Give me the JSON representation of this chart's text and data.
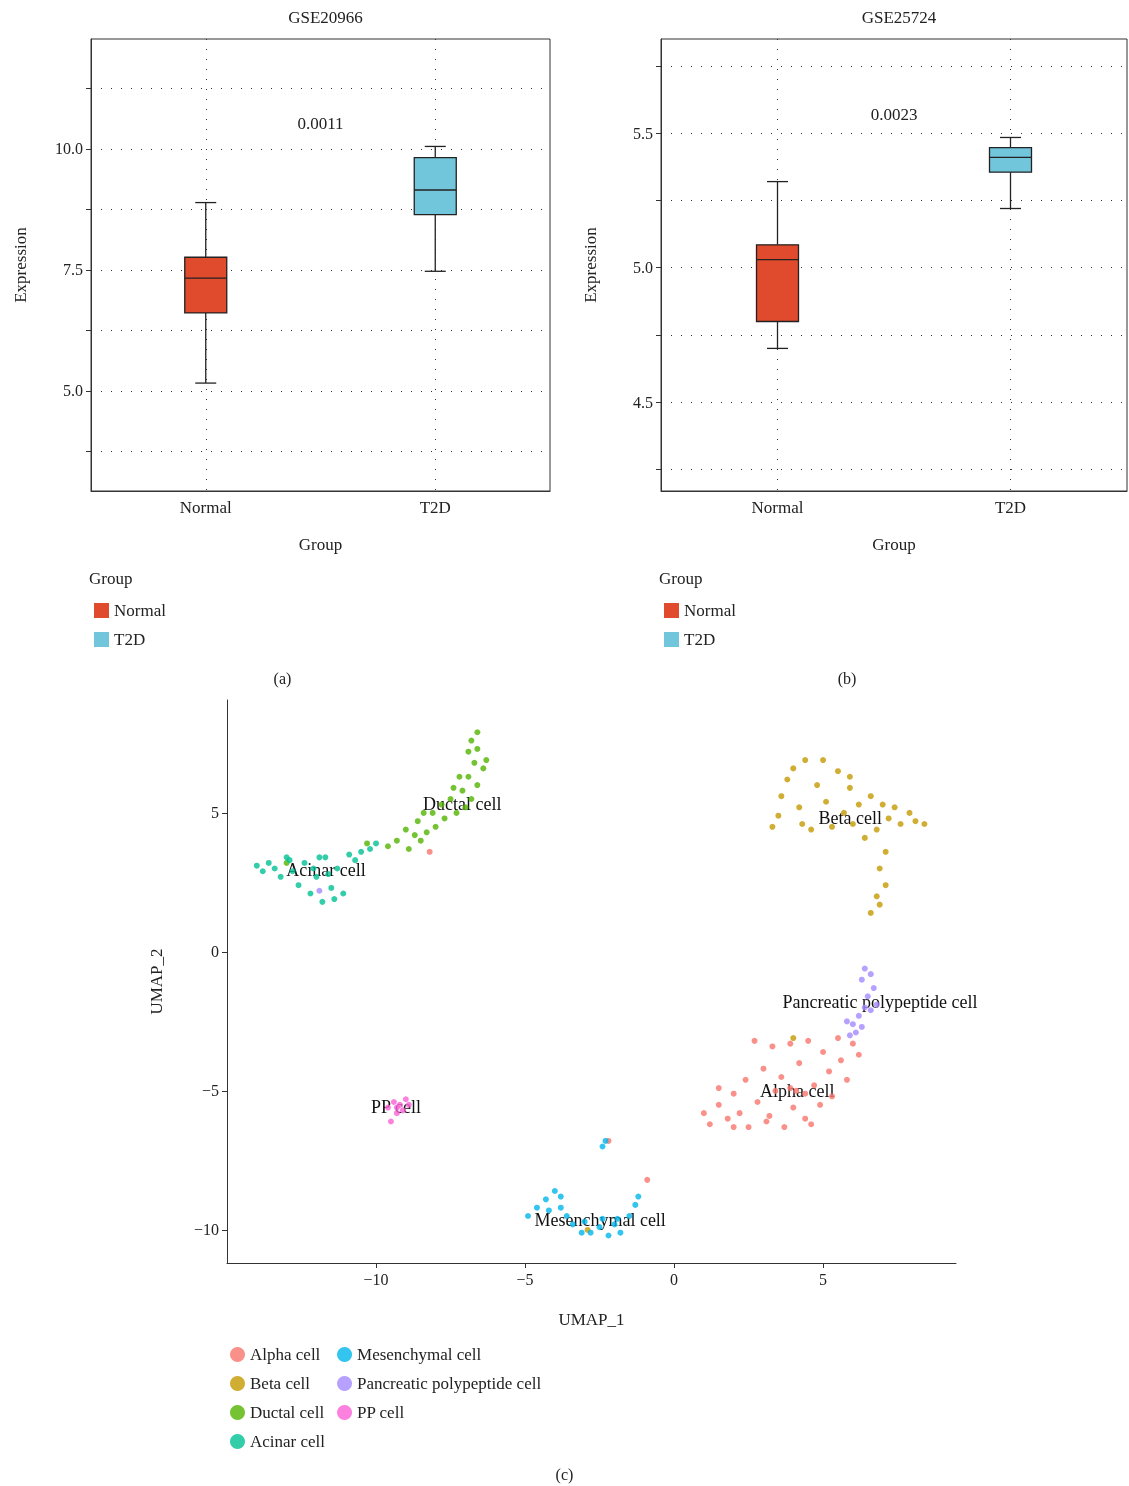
{
  "chart_data": [
    {
      "type": "box",
      "title": "GSE20966",
      "xlabel": "Group",
      "ylabel": "Expression",
      "legend_title": "Group",
      "legend": "bottom",
      "grid": true,
      "categories": [
        "Normal",
        "T2D"
      ],
      "series": [
        {
          "name": "Normal",
          "color": "#e04a2d",
          "boxes": [
            {
              "low": 5.16,
              "q1": 6.61,
              "median": 7.33,
              "q3": 7.76,
              "high": 8.89
            },
            null
          ]
        },
        {
          "name": "T2D",
          "color": "#72c6dc",
          "boxes": [
            null,
            {
              "low": 7.47,
              "q1": 8.64,
              "median": 9.15,
              "q3": 9.82,
              "high": 10.05
            }
          ]
        }
      ],
      "ylim": [
        2.93,
        12.27
      ],
      "yticks": [
        {
          "value": 3.75,
          "label": null
        },
        {
          "value": 5,
          "label": "5.0"
        },
        {
          "value": 6.25,
          "label": null
        },
        {
          "value": 7.5,
          "label": "7.5"
        },
        {
          "value": 8.75,
          "label": null
        },
        {
          "value": 10,
          "label": "10.0"
        },
        {
          "value": 11.25,
          "label": null
        }
      ],
      "annotations": [
        "0.0011",
        "(a)"
      ]
    },
    {
      "type": "box",
      "title": "GSE25724",
      "xlabel": "Group",
      "ylabel": "Expression",
      "legend_title": "Group",
      "legend": "bottom",
      "grid": true,
      "categories": [
        "Normal",
        "T2D"
      ],
      "series": [
        {
          "name": "Normal",
          "color": "#e04a2d",
          "boxes": [
            {
              "low": 4.7,
              "q1": 4.8,
              "median": 5.03,
              "q3": 5.085,
              "high": 5.32
            },
            null
          ]
        },
        {
          "name": "T2D",
          "color": "#72c6dc",
          "boxes": [
            null,
            {
              "low": 5.22,
              "q1": 5.355,
              "median": 5.41,
              "q3": 5.446,
              "high": 5.484
            }
          ]
        }
      ],
      "ylim": [
        4.17,
        5.85
      ],
      "yticks": [
        {
          "value": 4.25,
          "label": null
        },
        {
          "value": 4.5,
          "label": "4.5"
        },
        {
          "value": 4.75,
          "label": null
        },
        {
          "value": 5,
          "label": "5.0"
        },
        {
          "value": 5.25,
          "label": null
        },
        {
          "value": 5.5,
          "label": "5.5"
        },
        {
          "value": 5.75,
          "label": null
        }
      ],
      "annotations": [
        "0.0023",
        "(b)"
      ]
    },
    {
      "type": "scatter",
      "xlabel": "UMAP_1",
      "ylabel": "UMAP_2",
      "legend": "bottom",
      "grid": false,
      "marker": "circle",
      "xlim": [
        -15,
        9.46
      ],
      "xticks": [
        {
          "value": -10,
          "label": "−10"
        },
        {
          "value": -5,
          "label": "−5"
        },
        0,
        5
      ],
      "ylim": [
        -11.19,
        9.06
      ],
      "yticks": [
        {
          "value": -10,
          "label": "−10"
        },
        {
          "value": -5,
          "label": "−5"
        },
        0,
        5
      ],
      "series": [
        {
          "name": "Alpha cell",
          "color": "#f8766d",
          "x": [
            4.1,
            3.9,
            4.4,
            1.0,
            1.2,
            1.5,
            1.8,
            2.0,
            2.2,
            2.4,
            2.5,
            2.7,
            2.8,
            3.0,
            3.1,
            3.3,
            3.4,
            3.6,
            3.7,
            3.9,
            4.0,
            4.2,
            4.4,
            4.5,
            4.7,
            4.9,
            5.0,
            5.2,
            5.3,
            5.5,
            5.6,
            5.8,
            6.0,
            6.2,
            3.2,
            2.0,
            4.6,
            1.5,
            -2.2,
            -0.9,
            -8.2
          ],
          "values": [
            -5.0,
            -4.9,
            -5.1,
            -5.8,
            -6.2,
            -5.5,
            -6.0,
            -5.1,
            -5.8,
            -4.6,
            -6.3,
            -3.2,
            -5.4,
            -4.2,
            -6.1,
            -3.4,
            -5.0,
            -4.5,
            -6.3,
            -3.3,
            -5.6,
            -4.0,
            -6.0,
            -3.2,
            -4.8,
            -5.5,
            -3.6,
            -4.3,
            -5.2,
            -3.1,
            -3.9,
            -4.6,
            -3.3,
            -3.7,
            -5.9,
            -6.3,
            -6.2,
            -4.9,
            -6.8,
            -8.2,
            3.6
          ]
        },
        {
          "name": "Beta cell",
          "color": "#c49a00",
          "x": [
            3.3,
            3.5,
            3.6,
            3.8,
            4.0,
            4.2,
            4.4,
            4.6,
            4.8,
            5.0,
            5.1,
            5.3,
            5.5,
            5.7,
            5.9,
            6.0,
            6.2,
            6.4,
            6.6,
            6.8,
            7.0,
            7.2,
            7.4,
            7.6,
            7.9,
            8.1,
            8.4,
            7.1,
            6.9,
            7.1,
            6.8,
            6.9,
            6.6,
            4.3,
            5.9,
            -2.9,
            4.0
          ],
          "values": [
            4.5,
            4.9,
            5.6,
            6.2,
            6.6,
            5.2,
            6.9,
            4.4,
            6.0,
            6.9,
            5.4,
            4.5,
            6.5,
            5.0,
            5.9,
            4.6,
            5.3,
            4.1,
            5.6,
            4.4,
            5.3,
            4.8,
            5.2,
            4.6,
            5.0,
            4.7,
            4.6,
            3.6,
            3.0,
            2.4,
            2.0,
            1.7,
            1.4,
            4.6,
            6.3,
            -10.0,
            -3.1
          ]
        },
        {
          "name": "Ductal cell",
          "color": "#53b400",
          "x": [
            -9.6,
            -9.3,
            -9.0,
            -8.9,
            -8.6,
            -8.5,
            -8.3,
            -8.1,
            -8.0,
            -7.8,
            -7.7,
            -7.5,
            -7.3,
            -7.1,
            -7.0,
            -6.9,
            -6.8,
            -6.7,
            -6.6,
            -6.4,
            -6.3,
            -6.6,
            -6.8,
            -6.6,
            -6.9,
            -7.2,
            -7.4,
            -8.4,
            -8.7,
            -10.3,
            -13.0
          ],
          "values": [
            3.8,
            4.0,
            4.4,
            3.7,
            4.7,
            4.0,
            4.3,
            5.0,
            4.5,
            5.3,
            4.8,
            5.5,
            5.0,
            5.8,
            5.2,
            6.3,
            5.5,
            6.8,
            6.0,
            6.6,
            6.9,
            7.3,
            7.6,
            7.9,
            7.2,
            6.3,
            5.9,
            5.0,
            4.2,
            3.9,
            3.2
          ]
        },
        {
          "name": "Acinar cell",
          "color": "#00c094",
          "x": [
            -11.6,
            -12.1,
            -14.0,
            -13.8,
            -13.6,
            -13.4,
            -13.2,
            -13.0,
            -12.8,
            -12.6,
            -12.4,
            -12.2,
            -12.0,
            -11.8,
            -11.7,
            -11.5,
            -11.3,
            -11.1,
            -10.9,
            -10.7,
            -10.5,
            -10.2,
            -10.0,
            -11.9,
            -12.9,
            -11.4
          ],
          "values": [
            2.8,
            3.0,
            3.1,
            2.9,
            3.2,
            3.0,
            2.7,
            3.4,
            2.9,
            2.4,
            3.2,
            2.1,
            2.7,
            1.8,
            3.4,
            2.3,
            3.0,
            2.1,
            3.5,
            3.3,
            3.6,
            3.7,
            3.9,
            3.4,
            3.3,
            1.9
          ]
        },
        {
          "name": "Mesenchymal cell",
          "color": "#00b6eb",
          "x": [
            -4.9,
            -4.6,
            -4.3,
            -4.0,
            -3.8,
            -3.6,
            -3.4,
            -3.1,
            -2.8,
            -2.5,
            -2.2,
            -2.0,
            -1.8,
            -1.9,
            -2.4,
            -3.0,
            -3.8,
            -4.2,
            -2.3,
            -2.4,
            -1.5,
            -1.3,
            -1.2
          ],
          "values": [
            -9.5,
            -9.2,
            -8.9,
            -8.6,
            -9.2,
            -9.5,
            -9.8,
            -10.1,
            -10.1,
            -9.9,
            -10.2,
            -9.8,
            -10.1,
            -9.6,
            -9.6,
            -9.7,
            -8.8,
            -9.3,
            -6.8,
            -7.0,
            -9.5,
            -9.1,
            -8.8
          ]
        },
        {
          "name": "Pancreatic polypeptide cell",
          "color": "#a58aff",
          "x": [
            6.4,
            6.6,
            6.3,
            6.7,
            6.5,
            6.8,
            6.4,
            6.2,
            6.0,
            5.8,
            6.1,
            6.3,
            5.9,
            6.6,
            -11.9
          ],
          "values": [
            -0.6,
            -0.8,
            -1.0,
            -1.3,
            -1.6,
            -1.9,
            -2.0,
            -2.3,
            -2.6,
            -2.5,
            -2.9,
            -2.7,
            -3.0,
            -2.1,
            2.2
          ]
        },
        {
          "name": "PP cell",
          "color": "#fb61d7",
          "x": [
            -9.6,
            -9.4,
            -9.2,
            -9.0,
            -9.3,
            -9.5,
            -9.1,
            -8.9,
            -9.3
          ],
          "values": [
            -5.6,
            -5.4,
            -5.5,
            -5.3,
            -5.8,
            -6.1,
            -5.7,
            -5.5,
            -5.6
          ]
        }
      ],
      "annotations": [
        {
          "text": "Ductal cell",
          "x": -7.11,
          "y": 5.32
        },
        {
          "text": "Acinar cell",
          "x": -11.68,
          "y": 2.95
        },
        {
          "text": "Beta cell",
          "x": 5.91,
          "y": 4.82
        },
        {
          "text": "Pancreatic polypeptide cell",
          "x": 6.91,
          "y": -1.8
        },
        {
          "text": "Alpha cell",
          "x": 4.13,
          "y": -5.0
        },
        {
          "text": "PP cell",
          "x": -9.33,
          "y": -5.58
        },
        {
          "text": "Mesenchymal cell",
          "x": -2.48,
          "y": -9.64
        },
        "(c)"
      ]
    }
  ]
}
